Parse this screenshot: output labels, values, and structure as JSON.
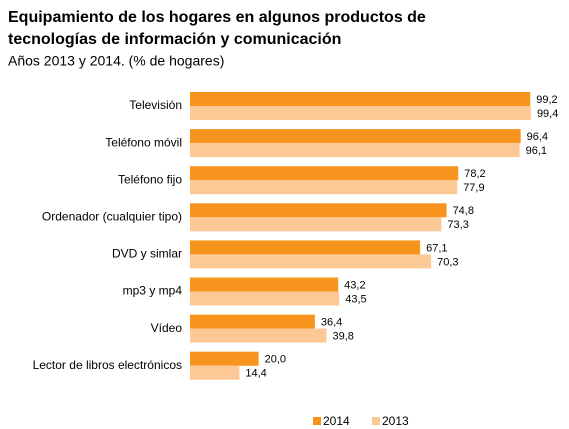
{
  "chart_data": {
    "type": "bar",
    "orientation": "horizontal",
    "title": [
      "Equipamiento de los hogares en algunos productos de",
      "tecnologías de información y comunicación"
    ],
    "subtitle": "Años 2013 y 2014. (% de hogares)",
    "categories": [
      "Televisión",
      "Teléfono móvil",
      "Teléfono fijo",
      "Ordenador (cualquier tipo)",
      "DVD y simlar",
      "mp3 y mp4",
      "Vídeo",
      "Lector de libros electrónicos"
    ],
    "series": [
      {
        "name": "2014",
        "color": "#f7941d",
        "values": [
          99.2,
          96.4,
          78.2,
          74.8,
          67.1,
          43.2,
          36.4,
          20.0
        ],
        "value_labels": [
          "99,2",
          "96,4",
          "78,2",
          "74,8",
          "67,1",
          "43,2",
          "36,4",
          "20,0"
        ]
      },
      {
        "name": "2013",
        "color": "#fbc896",
        "values": [
          99.4,
          96.1,
          77.9,
          73.3,
          70.3,
          43.5,
          39.8,
          14.4
        ],
        "value_labels": [
          "99,4",
          "96,1",
          "77,9",
          "73,3",
          "70,3",
          "43,5",
          "39,8",
          "14,4"
        ]
      }
    ],
    "xlim": [
      0,
      100
    ],
    "legend": "bottom"
  }
}
